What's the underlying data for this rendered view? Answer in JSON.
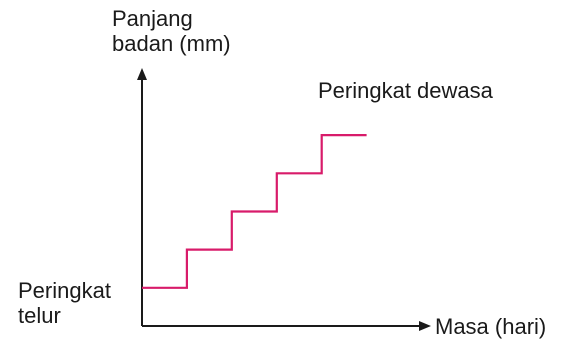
{
  "chart_data": {
    "type": "line",
    "title": "",
    "ylabel_lines": [
      "Panjang",
      "badan (mm)"
    ],
    "xlabel": "Masa (hari)",
    "annotations": {
      "start": [
        "Peringkat",
        "telur"
      ],
      "end": [
        "Peringkat dewasa"
      ]
    },
    "series": [
      {
        "color": "#d81b6a",
        "step": true,
        "points": [
          [
            0,
            1
          ],
          [
            1,
            1
          ],
          [
            1,
            2
          ],
          [
            2,
            2
          ],
          [
            2,
            3
          ],
          [
            3,
            3
          ],
          [
            3,
            4
          ],
          [
            4,
            4
          ],
          [
            4,
            5
          ],
          [
            5,
            5
          ]
        ]
      }
    ],
    "xlim": [
      0,
      6.3
    ],
    "ylim": [
      0,
      6.6
    ],
    "ticks": false,
    "grid": false,
    "axis_color": "#1a1a1a"
  }
}
